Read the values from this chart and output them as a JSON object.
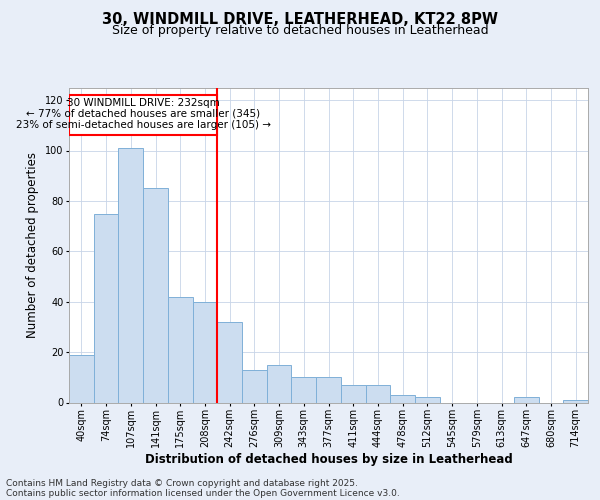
{
  "title1": "30, WINDMILL DRIVE, LEATHERHEAD, KT22 8PW",
  "title2": "Size of property relative to detached houses in Leatherhead",
  "xlabel": "Distribution of detached houses by size in Leatherhead",
  "ylabel": "Number of detached properties",
  "categories": [
    "40sqm",
    "74sqm",
    "107sqm",
    "141sqm",
    "175sqm",
    "208sqm",
    "242sqm",
    "276sqm",
    "309sqm",
    "343sqm",
    "377sqm",
    "411sqm",
    "444sqm",
    "478sqm",
    "512sqm",
    "545sqm",
    "579sqm",
    "613sqm",
    "647sqm",
    "680sqm",
    "714sqm"
  ],
  "values": [
    19,
    75,
    101,
    85,
    42,
    40,
    32,
    13,
    15,
    10,
    10,
    7,
    7,
    3,
    2,
    0,
    0,
    0,
    2,
    0,
    1
  ],
  "bar_color": "#ccddf0",
  "bar_edge_color": "#7fb0d8",
  "redline_index": 6,
  "property_label": "30 WINDMILL DRIVE: 232sqm",
  "annotation_line1": "← 77% of detached houses are smaller (345)",
  "annotation_line2": "23% of semi-detached houses are larger (105) →",
  "footer1": "Contains HM Land Registry data © Crown copyright and database right 2025.",
  "footer2": "Contains public sector information licensed under the Open Government Licence v3.0.",
  "ylim": [
    0,
    125
  ],
  "yticks": [
    0,
    20,
    40,
    60,
    80,
    100,
    120
  ],
  "bg_color": "#e8eef8",
  "plot_bg_color": "#ffffff",
  "title_fontsize": 10.5,
  "subtitle_fontsize": 9,
  "axis_label_fontsize": 8.5,
  "tick_fontsize": 7,
  "footer_fontsize": 6.5,
  "annotation_fontsize": 7.5
}
